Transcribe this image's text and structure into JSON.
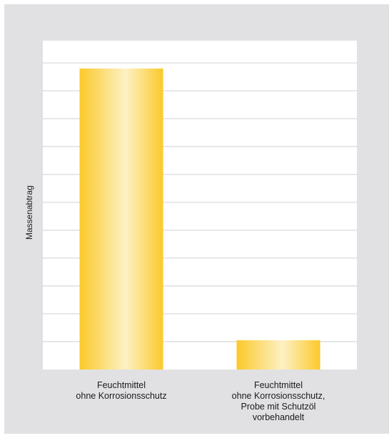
{
  "chart_data": {
    "type": "bar",
    "categories": [
      "Feuchtmittel\nohne Korrosionsschutz",
      "Feuchtmittel\nohne Korrosionsschutz,\nProbe mit Schutzöl\nvorbehandelt"
    ],
    "values": [
      10.8,
      1.05
    ],
    "ylabel": "Massenabtrag",
    "xlabel": "",
    "title": "",
    "ylim": [
      0,
      11.8
    ],
    "grid": true,
    "colors": {
      "frame": "#e1e1e3",
      "plot_bg": "#ffffff",
      "grid": "#e1e1e3",
      "bar_edge": "#fbc92a",
      "bar_center": "#fdf1c5"
    }
  }
}
